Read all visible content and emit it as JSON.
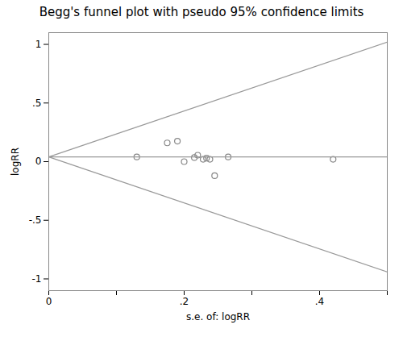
{
  "chart_data": {
    "type": "scatter",
    "title": "Begg's funnel plot with pseudo 95% confidence limits",
    "xlabel": "s.e. of: logRR",
    "ylabel": "logRR",
    "xlim": [
      0,
      0.5
    ],
    "ylim": [
      -1.1,
      1.1
    ],
    "xticks": [
      0,
      {
        "value": 0.1,
        "label": null
      },
      {
        "value": 0.2,
        "label": ".2"
      },
      {
        "value": 0.3,
        "label": null
      },
      {
        "value": 0.4,
        "label": ".4"
      },
      {
        "value": 0.5,
        "label": null
      }
    ],
    "yticks": [
      -1,
      {
        "value": -0.5,
        "label": "-.5"
      },
      0,
      {
        "value": 0.5,
        "label": ".5"
      },
      1
    ],
    "grid": false,
    "series": [
      {
        "type": "scatter",
        "marker": "circle",
        "color": "#888888",
        "x": [
          0.13,
          0.175,
          0.19,
          0.2,
          0.215,
          0.22,
          0.228,
          0.233,
          0.238,
          0.245,
          0.265,
          0.42
        ],
        "values": [
          0.04,
          0.16,
          0.175,
          0.0,
          0.035,
          0.055,
          0.02,
          0.03,
          0.02,
          -0.12,
          0.04,
          0.02
        ]
      },
      {
        "type": "line",
        "color": "#999999",
        "x": [
          0,
          0.5
        ],
        "values": [
          0.04,
          1.02
        ]
      },
      {
        "type": "line",
        "color": "#999999",
        "x": [
          0,
          0.5
        ],
        "values": [
          0.04,
          -0.94
        ]
      },
      {
        "type": "line",
        "color": "#999999",
        "x": [
          0,
          0.5
        ],
        "values": [
          0.04,
          0.04
        ]
      }
    ]
  }
}
